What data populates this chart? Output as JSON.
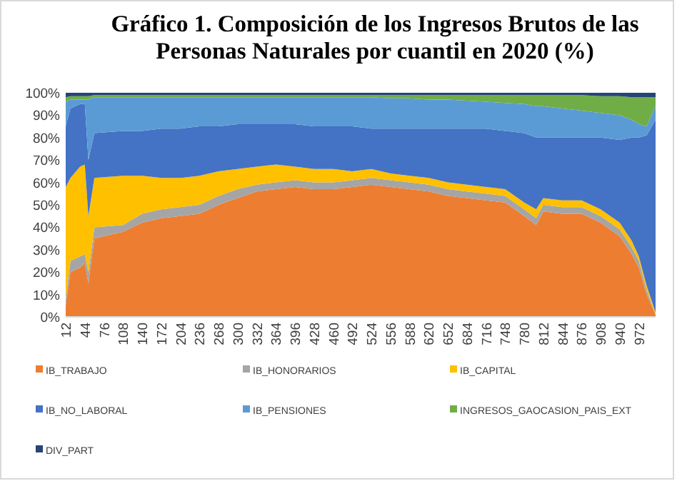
{
  "chart_data": {
    "type": "area",
    "stacked": true,
    "title": "Gráfico 1. Composición de los Ingresos Brutos de las Personas Naturales por cuantil en 2020 (%)",
    "x": [
      12,
      20,
      36,
      44,
      50,
      60,
      108,
      140,
      172,
      204,
      236,
      268,
      300,
      332,
      364,
      396,
      428,
      460,
      492,
      524,
      556,
      588,
      620,
      652,
      684,
      716,
      748,
      780,
      800,
      812,
      844,
      876,
      908,
      940,
      960,
      972,
      985,
      1000
    ],
    "xlim": [
      12,
      1000
    ],
    "xticks": [
      12,
      44,
      76,
      108,
      140,
      172,
      204,
      236,
      268,
      300,
      332,
      364,
      396,
      428,
      460,
      492,
      524,
      556,
      588,
      620,
      652,
      684,
      716,
      748,
      780,
      812,
      844,
      876,
      908,
      940,
      972
    ],
    "ylim": [
      0,
      100
    ],
    "yticks": [
      {
        "value": 0,
        "label": "0%"
      },
      {
        "value": 10,
        "label": "10%"
      },
      {
        "value": 20,
        "label": "20%"
      },
      {
        "value": 30,
        "label": "30%"
      },
      {
        "value": 40,
        "label": "40%"
      },
      {
        "value": 50,
        "label": "50%"
      },
      {
        "value": 60,
        "label": "60%"
      },
      {
        "value": 70,
        "label": "70%"
      },
      {
        "value": 80,
        "label": "80%"
      },
      {
        "value": 90,
        "label": "90%"
      },
      {
        "value": 100,
        "label": "100%"
      }
    ],
    "legend": "bottom",
    "series": [
      {
        "name": "IB_TRABAJO",
        "color": "#ed7d31",
        "values": [
          5,
          20,
          22,
          24,
          15,
          35,
          38,
          42,
          44,
          45,
          46,
          50,
          53,
          56,
          57,
          58,
          57,
          57,
          58,
          59,
          58,
          57,
          56,
          54,
          53,
          52,
          51,
          45,
          41,
          47,
          46,
          46,
          42,
          36,
          28,
          22,
          10,
          1
        ]
      },
      {
        "name": "IB_HONORARIOS",
        "color": "#a5a5a5",
        "values": [
          3,
          5,
          5,
          4,
          5,
          5,
          3,
          4,
          4,
          4,
          4,
          4,
          4,
          3,
          3,
          3,
          3,
          3,
          3,
          3,
          3,
          3,
          3,
          3,
          3,
          3,
          3,
          3,
          3,
          3,
          3,
          3,
          3,
          3,
          3,
          3,
          2,
          0
        ]
      },
      {
        "name": "IB_CAPITAL",
        "color": "#ffc000",
        "values": [
          50,
          37,
          40,
          40,
          25,
          22,
          22,
          17,
          14,
          13,
          13,
          11,
          9,
          8,
          8,
          6,
          6,
          6,
          4,
          4,
          3,
          3,
          3,
          3,
          3,
          3,
          3,
          3,
          4,
          3,
          3,
          3,
          3,
          3,
          3,
          2,
          2,
          1
        ]
      },
      {
        "name": "IB_NO_LABORAL",
        "color": "#4472c4",
        "values": [
          27,
          31,
          28,
          27,
          25,
          20,
          20,
          20,
          22,
          22,
          22,
          20,
          20,
          19,
          18,
          19,
          19,
          19,
          20,
          18,
          20,
          21,
          22,
          24,
          25,
          26,
          26,
          31,
          32,
          27,
          28,
          28,
          32,
          37,
          46,
          53,
          67,
          86
        ]
      },
      {
        "name": "IB_PENSIONES",
        "color": "#5b9bd5",
        "values": [
          11,
          4,
          2,
          2,
          27,
          16,
          15,
          15,
          14,
          14,
          13,
          13,
          12,
          12,
          12,
          12,
          13,
          13,
          13,
          14,
          13.5,
          13.5,
          13,
          13,
          12.5,
          12,
          12.5,
          13,
          14,
          14,
          13,
          12,
          11,
          11,
          8,
          6,
          4,
          6
        ]
      },
      {
        "name": "INGRESOS_GAOCASION_PAIS_EXT",
        "color": "#70ad47",
        "values": [
          2,
          1.5,
          1.5,
          1.5,
          1.5,
          1,
          1,
          1,
          1,
          1,
          1,
          1,
          1,
          1,
          1,
          1,
          1,
          1,
          1,
          1,
          1.5,
          1.5,
          2,
          2,
          2.5,
          3,
          3.5,
          4,
          5,
          5,
          6,
          7,
          7.5,
          8.5,
          10,
          12,
          13,
          4
        ]
      },
      {
        "name": "DIV_PART",
        "color": "#264478",
        "values": [
          2,
          1.5,
          1.5,
          1.5,
          1.5,
          1,
          1,
          1,
          1,
          1,
          1,
          1,
          1,
          1,
          1,
          1,
          1,
          1,
          1,
          1,
          1,
          1,
          1,
          1,
          1,
          1,
          1,
          1,
          1,
          1,
          1,
          1,
          1.5,
          1.5,
          2,
          2,
          2,
          2
        ]
      }
    ]
  }
}
